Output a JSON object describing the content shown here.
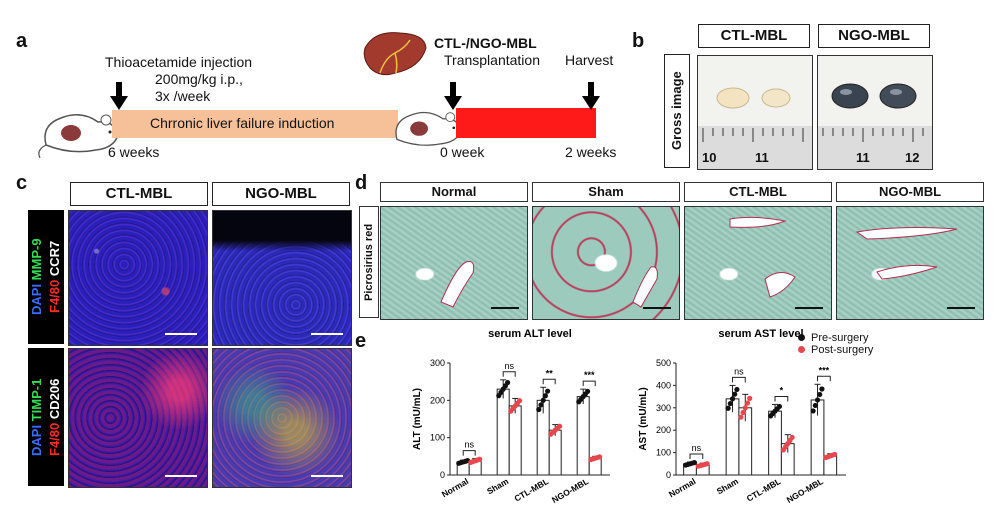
{
  "panels": {
    "a": "a",
    "b": "b",
    "c": "c",
    "d": "d",
    "e": "e"
  },
  "panel_a": {
    "injection_title": "Thioacetamide injection",
    "dose": "200mg/kg i.p.,",
    "freq": "3x /week",
    "transplant_title": "CTL-/NGO-MBL",
    "transplant_sub": "Transplantation",
    "harvest": "Harvest",
    "induction": "Chrronic liver failure induction",
    "t0": "6 weeks",
    "t1": "0 week",
    "t2": "2 weeks"
  },
  "panel_b": {
    "ylabel": "Gross image",
    "col1": "CTL-MBL",
    "col2": "NGO-MBL",
    "ruler1_a": "10",
    "ruler1_b": "11",
    "ruler2_a": "11",
    "ruler2_b": "12"
  },
  "panel_c": {
    "col1": "CTL-MBL",
    "col2": "NGO-MBL",
    "row1": {
      "dapi": "DAPI",
      "green": "MMP-9",
      "red": "F4/80",
      "white": "CCR7"
    },
    "row2": {
      "dapi": "DAPI",
      "green": "TIMP-1",
      "red": "F4/80",
      "white": "CD206"
    }
  },
  "panel_d": {
    "cols": [
      "Normal",
      "Sham",
      "CTL-MBL",
      "NGO-MBL"
    ],
    "ylabel": "Picrosirius red"
  },
  "legend": {
    "pre": "Pre-surgery",
    "post": "Post-surgery",
    "pre_color": "#111111",
    "post_color": "#e8474e"
  },
  "chart_data": [
    {
      "type": "bar",
      "title": "serum  ALT level",
      "ylabel": "ALT (mU/mL)",
      "categories": [
        "Normal",
        "Sham",
        "CTL-MBL",
        "NGO-MBL"
      ],
      "ylim": [
        0,
        300
      ],
      "yticks": [
        0,
        100,
        200,
        300
      ],
      "series": [
        {
          "name": "Pre-surgery",
          "values": [
            35,
            230,
            200,
            210
          ],
          "errors": [
            5,
            25,
            35,
            20
          ]
        },
        {
          "name": "Post-surgery",
          "values": [
            38,
            185,
            120,
            45
          ],
          "errors": [
            6,
            20,
            15,
            5
          ]
        }
      ],
      "significance": [
        "ns",
        "ns",
        "**",
        "***"
      ]
    },
    {
      "type": "bar",
      "title": "serum AST level",
      "ylabel": "AST (mU/mL)",
      "categories": [
        "Normal",
        "Sham",
        "CTL-MBL",
        "NGO-MBL"
      ],
      "ylim": [
        0,
        500
      ],
      "yticks": [
        0,
        100,
        200,
        300,
        400,
        500
      ],
      "series": [
        {
          "name": "Pre-surgery",
          "values": [
            50,
            340,
            285,
            335
          ],
          "errors": [
            8,
            60,
            30,
            70
          ]
        },
        {
          "name": "Post-surgery",
          "values": [
            45,
            300,
            140,
            85
          ],
          "errors": [
            8,
            60,
            40,
            10
          ]
        }
      ],
      "significance": [
        "ns",
        "ns",
        "*",
        "***"
      ]
    }
  ]
}
